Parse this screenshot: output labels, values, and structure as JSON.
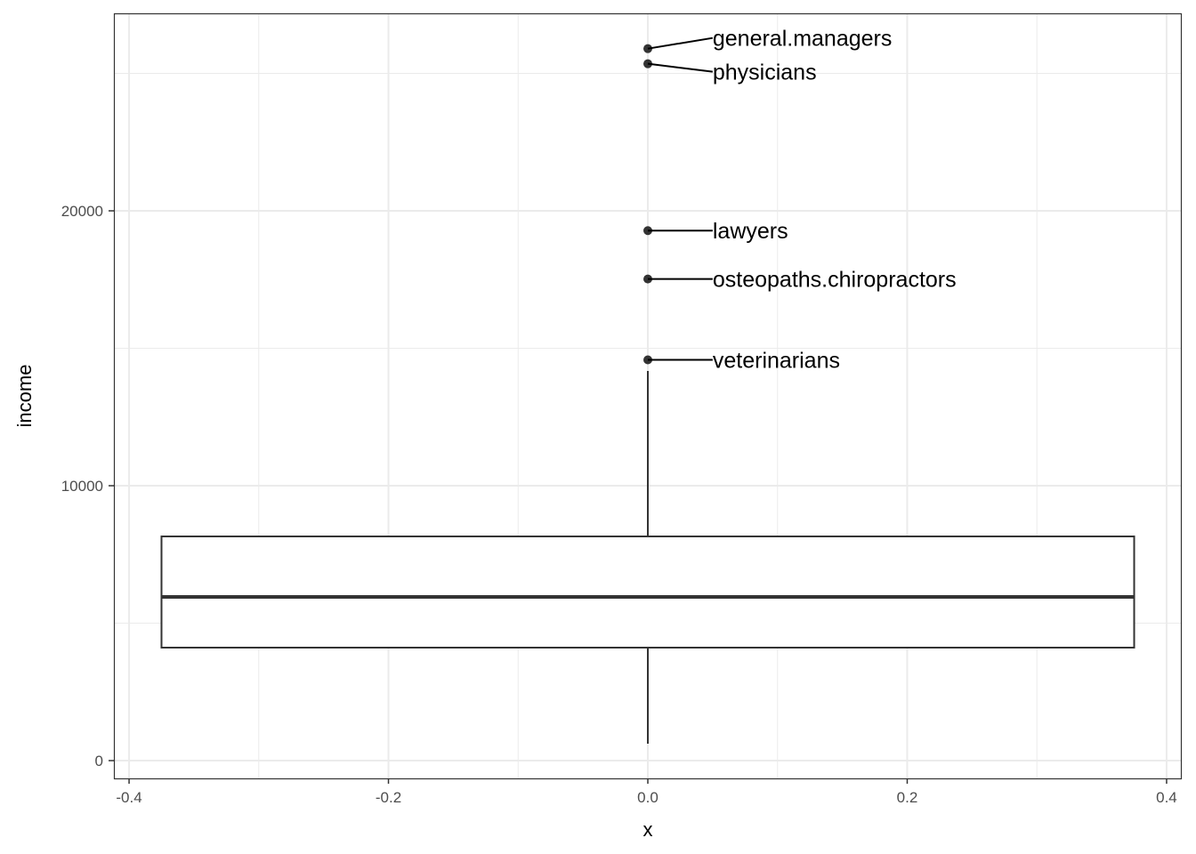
{
  "chart_data": {
    "type": "boxplot",
    "title": "",
    "xlabel": "x",
    "ylabel": "income",
    "xlim": [
      -0.4117,
      0.4117
    ],
    "ylim": [
      -647,
      27184
    ],
    "x_ticks": [
      -0.4,
      -0.2,
      0.0,
      0.2,
      0.4
    ],
    "x_tick_labels": [
      "-0.4",
      "-0.2",
      "0.0",
      "0.2",
      "0.4"
    ],
    "y_ticks": [
      0,
      10000,
      20000
    ],
    "y_tick_labels": [
      "0",
      "10000",
      "20000"
    ],
    "grid": true,
    "box": {
      "x": 0,
      "width": 0.75,
      "whisker_low": 615,
      "q1": 4110,
      "median": 5955,
      "q3": 8155,
      "whisker_high": 14175
    },
    "outliers": [
      {
        "label": "general.managers",
        "value": 25900
      },
      {
        "label": "physicians",
        "value": 25350
      },
      {
        "label": "lawyers",
        "value": 19280
      },
      {
        "label": "osteopaths.chiropractors",
        "value": 17520
      },
      {
        "label": "veterinarians",
        "value": 14580
      }
    ],
    "colors": {
      "box_line": "#333333",
      "point": "#333333",
      "grid": "#ebebeb",
      "panel_border": "#333333"
    }
  }
}
